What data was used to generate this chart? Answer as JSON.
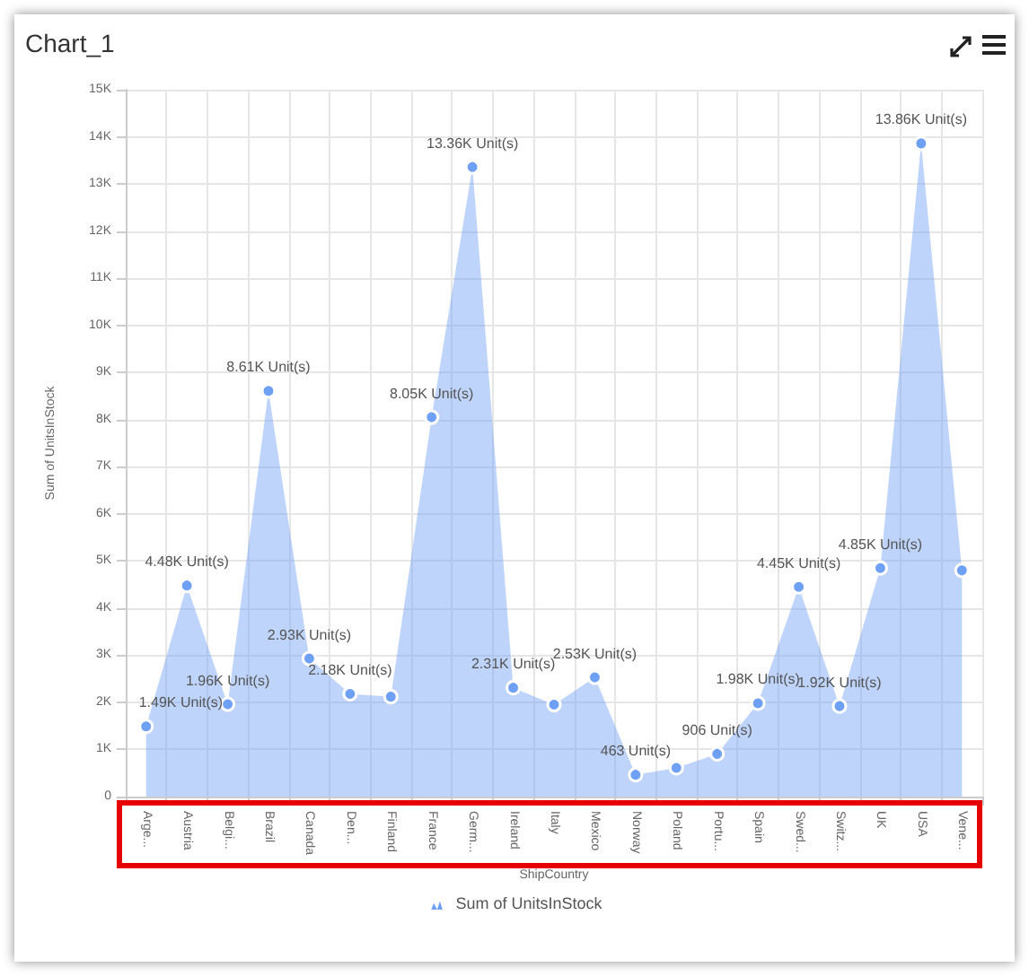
{
  "chart_data": {
    "type": "area",
    "title": "Chart_1",
    "xlabel": "ShipCountry",
    "ylabel": "Sum of UnitsInStock",
    "categories": [
      "Arge...",
      "Austria",
      "Belgi...",
      "Brazil",
      "Canada",
      "Den...",
      "Finland",
      "France",
      "Germ...",
      "Ireland",
      "Italy",
      "Mexico",
      "Norway",
      "Poland",
      "Portu...",
      "Spain",
      "Swed...",
      "Switz...",
      "UK",
      "USA",
      "Vene..."
    ],
    "series": [
      {
        "name": "Sum of UnitsInStock",
        "color": "#6ea0f5",
        "values": [
          1490,
          4480,
          1960,
          8610,
          2930,
          2180,
          2120,
          8050,
          13360,
          2310,
          1950,
          2530,
          463,
          610,
          906,
          1980,
          4450,
          1920,
          4850,
          13860,
          4800
        ],
        "value_labels": [
          "1.49K Unit(s)",
          "4.48K Unit(s)",
          "1.96K Unit(s)",
          "8.61K Unit(s)",
          "2.93K Unit(s)",
          "2.18K Unit(s)",
          null,
          "8.05K Unit(s)",
          "13.36K Unit(s)",
          "2.31K Unit(s)",
          null,
          "2.53K Unit(s)",
          "463 Unit(s)",
          null,
          "906 Unit(s)",
          "1.98K Unit(s)",
          "4.45K Unit(s)",
          "1.92K Unit(s)",
          "4.85K Unit(s)",
          "13.86K Unit(s)",
          null
        ]
      }
    ],
    "ylim": [
      0,
      15000
    ],
    "yticks": [
      0,
      {
        "value": 1000,
        "label": "1K"
      },
      {
        "value": 2000,
        "label": "2K"
      },
      {
        "value": 3000,
        "label": "3K"
      },
      {
        "value": 4000,
        "label": "4K"
      },
      {
        "value": 5000,
        "label": "5K"
      },
      {
        "value": 6000,
        "label": "6K"
      },
      {
        "value": 7000,
        "label": "7K"
      },
      {
        "value": 8000,
        "label": "8K"
      },
      {
        "value": 9000,
        "label": "9K"
      },
      {
        "value": 10000,
        "label": "10K"
      },
      {
        "value": 11000,
        "label": "11K"
      },
      {
        "value": 12000,
        "label": "12K"
      },
      {
        "value": 13000,
        "label": "13K"
      },
      {
        "value": 14000,
        "label": "14K"
      },
      {
        "value": 15000,
        "label": "15K"
      }
    ],
    "grid": true,
    "legend": "bottom",
    "marker": "circle"
  }
}
